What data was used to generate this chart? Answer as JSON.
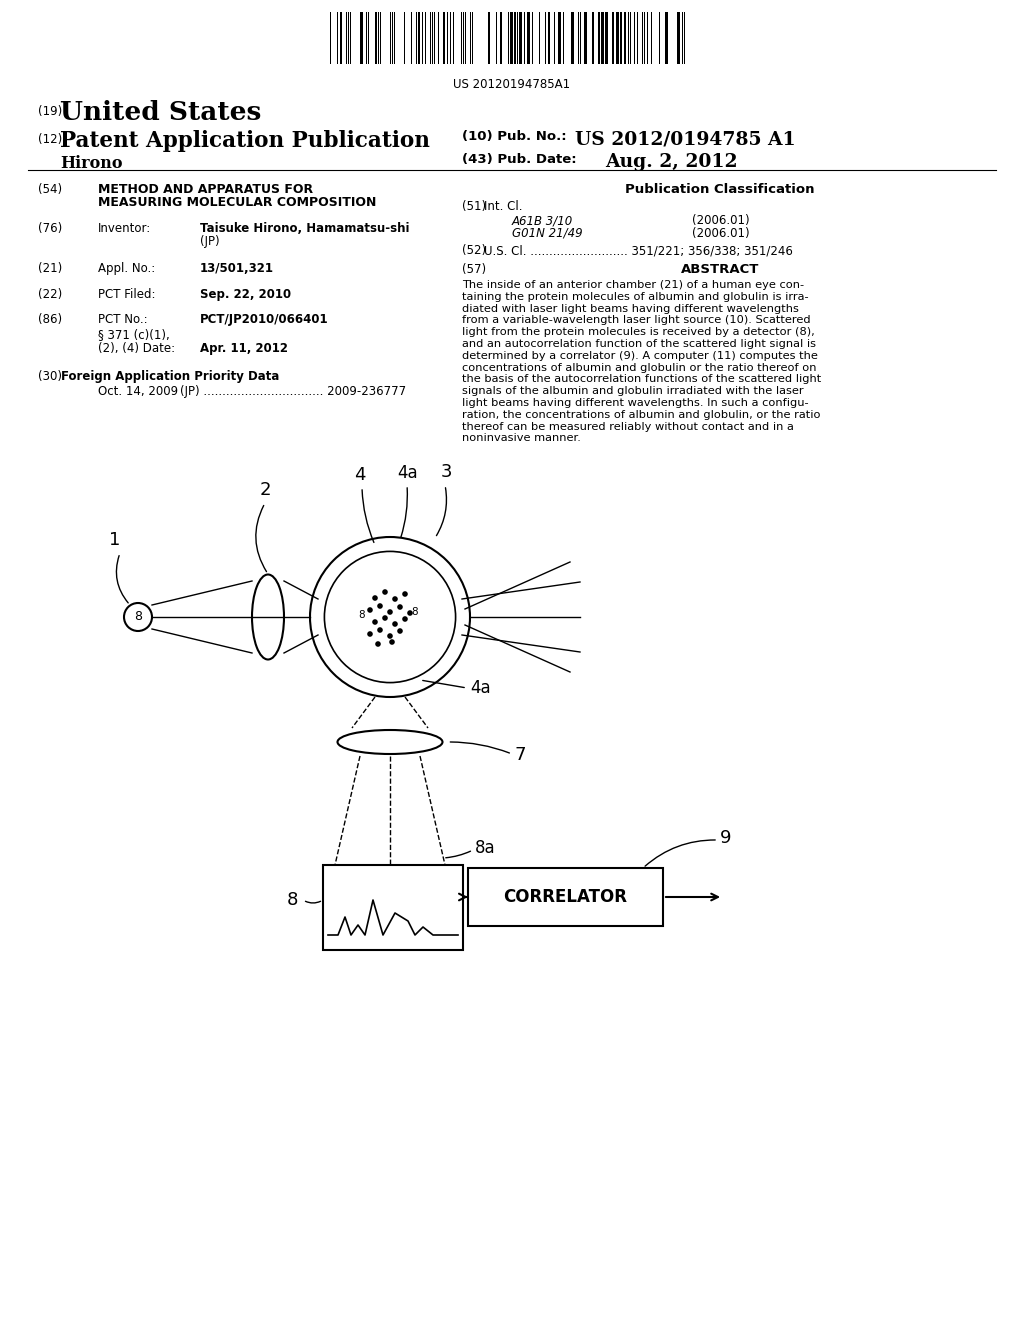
{
  "background_color": "#ffffff",
  "barcode_text": "US 20120194785A1",
  "patent_number_label": "(19)",
  "patent_number_text": "United States",
  "pub_type_label": "(12)",
  "pub_type_text": "Patent Application Publication",
  "pub_no_label": "(10) Pub. No.:",
  "pub_no_value": "US 2012/0194785 A1",
  "inventor_name": "Hirono",
  "pub_date_label": "(43) Pub. Date:",
  "pub_date_value": "Aug. 2, 2012",
  "title_label": "(54)",
  "title_line1": "METHOD AND APPARATUS FOR",
  "title_line2": "MEASURING MOLECULAR COMPOSITION",
  "pub_class_header": "Publication Classification",
  "int_cl_label": "(51)  Int. Cl.",
  "int_cl_line1": "A61B 3/10",
  "int_cl_line2": "G01N 21/49",
  "int_cl_date1": "(2006.01)",
  "int_cl_date2": "(2006.01)",
  "us_cl_label": "(52)",
  "us_cl_text": "U.S. Cl. .......................... 351/221; 356/338; 351/246",
  "abstract_label": "(57)",
  "abstract_header": "ABSTRACT",
  "abstract_lines": [
    "The inside of an anterior chamber (21) of a human eye con-",
    "taining the protein molecules of albumin and globulin is irra-",
    "diated with laser light beams having different wavelengths",
    "from a variable-wavelength laser light source (10). Scattered",
    "light from the protein molecules is received by a detector (8),",
    "and an autocorrelation function of the scattered light signal is",
    "determined by a correlator (9). A computer (11) computes the",
    "concentrations of albumin and globulin or the ratio thereof on",
    "the basis of the autocorrelation functions of the scattered light",
    "signals of the albumin and globulin irradiated with the laser",
    "light beams having different wavelengths. In such a configu-",
    "ration, the concentrations of albumin and globulin, or the ratio",
    "thereof can be measured reliably without contact and in a",
    "noninvasive manner."
  ],
  "inventor_label": "(76)",
  "inventor_field": "Inventor:",
  "inventor_value_line1": "Taisuke Hirono, Hamamatsu-shi",
  "inventor_value_line2": "(JP)",
  "appl_label": "(21)",
  "appl_field": "Appl. No.:",
  "appl_value": "13/501,321",
  "pct_filed_label": "(22)",
  "pct_filed_field": "PCT Filed:",
  "pct_filed_value": "Sep. 22, 2010",
  "pct_no_label": "(86)",
  "pct_no_field": "PCT No.:",
  "pct_no_value": "PCT/JP2010/066401",
  "section371_line1": "§ 371 (c)(1),",
  "section371_line2": "(2), (4) Date:",
  "section371_value": "Apr. 11, 2012",
  "foreign_app_label": "(30)",
  "foreign_app_header": "Foreign Application Priority Data",
  "foreign_app_date": "Oct. 14, 2009",
  "foreign_app_country": "(JP) ................................ 2009-236777",
  "diag_label_1": "1",
  "diag_label_2": "2",
  "diag_label_3": "3",
  "diag_label_4": "4",
  "diag_label_4a_top": "4a",
  "diag_label_4a_side": "4a",
  "diag_label_7": "7",
  "diag_label_8": "8",
  "diag_label_8a": "8a",
  "diag_label_9": "9",
  "diag_correlator": "CORRELATOR"
}
